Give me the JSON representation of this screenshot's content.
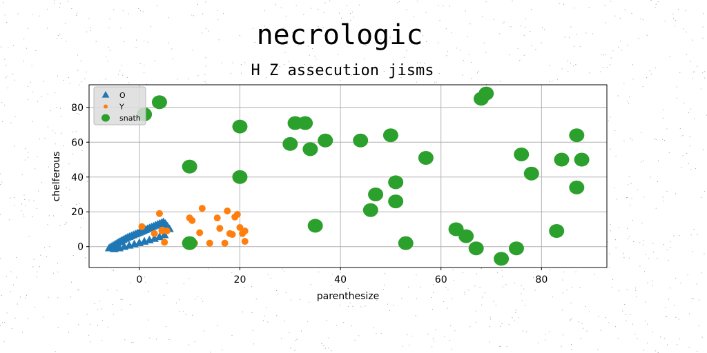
{
  "chart_data": {
    "type": "scatter",
    "title": "necrologic",
    "subtitle": "H Z assecution jisms",
    "xlabel": "parenthesize",
    "ylabel": "chelferous",
    "xlim": [
      -10,
      93
    ],
    "ylim": [
      -12,
      93
    ],
    "xticks": [
      0,
      20,
      40,
      60,
      80
    ],
    "yticks": [
      0,
      20,
      40,
      60,
      80
    ],
    "grid": true,
    "legend_position": "top-left",
    "series": [
      {
        "name": "O",
        "marker": "triangle",
        "color": "#1f77b4",
        "x": [
          -6.0,
          -5.6,
          -5.2,
          -4.8,
          -4.4,
          -4.0,
          -3.6,
          -3.2,
          -2.8,
          -2.4,
          -2.0,
          -1.6,
          -1.2,
          -0.8,
          -0.4,
          0.0,
          0.4,
          0.8,
          1.2,
          1.6,
          2.0,
          2.4,
          2.8,
          3.2,
          3.6,
          4.0,
          4.4,
          4.8,
          5.2,
          5.6,
          6.0,
          -5.0,
          -4.0,
          -3.0,
          -2.0,
          -1.0,
          0.0,
          1.0,
          2.0,
          3.0,
          4.0,
          5.0
        ],
        "y": [
          -1.0,
          -0.2,
          0.5,
          1.2,
          1.9,
          2.6,
          3.2,
          3.8,
          4.4,
          5.0,
          5.5,
          6.0,
          6.5,
          7.0,
          7.5,
          8.0,
          8.5,
          9.0,
          9.5,
          10.0,
          10.5,
          11.0,
          11.5,
          12.0,
          12.5,
          13.0,
          13.5,
          14.0,
          13.0,
          11.5,
          10.0,
          -1.5,
          -1.0,
          -0.2,
          0.5,
          1.2,
          2.0,
          2.8,
          3.6,
          4.4,
          5.4,
          6.5
        ]
      },
      {
        "name": "Y",
        "marker": "circle-small",
        "color": "#ff7f0e",
        "x": [
          0.5,
          3,
          4,
          4.5,
          5,
          5.5,
          4.5,
          10,
          10.5,
          11,
          12,
          12.5,
          14,
          15.5,
          16,
          17,
          17.5,
          18,
          18.5,
          19,
          19.5,
          20,
          20.5,
          21,
          21
        ],
        "y": [
          11.5,
          7.5,
          19,
          9,
          2.5,
          9,
          9.5,
          16.5,
          15,
          2,
          8,
          22,
          2,
          16.5,
          10.5,
          2,
          20.5,
          7.5,
          7,
          17,
          18.5,
          11,
          7.5,
          3,
          9
        ]
      },
      {
        "name": "snath",
        "marker": "circle-large",
        "color": "#2ca02c",
        "x": [
          1,
          4,
          10,
          10,
          20,
          20,
          30,
          31,
          33,
          34,
          35,
          37,
          44,
          46,
          47,
          50,
          51,
          51,
          53,
          57,
          63,
          65,
          67,
          68,
          69,
          72,
          75,
          76,
          78,
          83,
          84,
          87,
          87,
          88
        ],
        "y": [
          76,
          83,
          46,
          2,
          69,
          40,
          59,
          71,
          71,
          56,
          12,
          61,
          61,
          21,
          30,
          64,
          37,
          26,
          2,
          51,
          10,
          6,
          -1,
          85,
          88,
          -7,
          -1,
          53,
          42,
          9,
          50,
          64,
          34,
          50
        ]
      }
    ]
  }
}
